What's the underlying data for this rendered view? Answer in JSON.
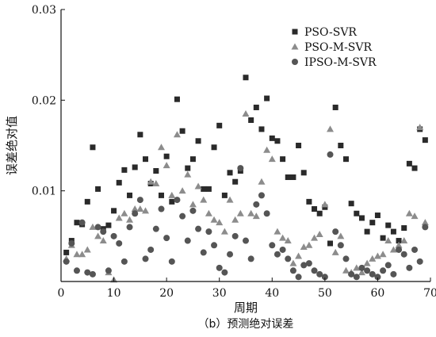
{
  "chart_data": {
    "type": "scatter",
    "title": "",
    "caption": "（b）预测绝对误差",
    "xlabel": "周期",
    "ylabel": "误差绝对值",
    "xlim": [
      0,
      70
    ],
    "ylim": [
      0,
      0.03
    ],
    "x_ticks": [
      "0",
      "10",
      "20",
      "30",
      "40",
      "50",
      "60",
      "70"
    ],
    "y_ticks": [
      "0.01",
      "0.02",
      "0.03"
    ],
    "x_tick_values": [
      0,
      10,
      20,
      30,
      40,
      50,
      60,
      70
    ],
    "y_tick_values": [
      0.01,
      0.02,
      0.03
    ],
    "legend_position": "top-right",
    "series": [
      {
        "name": "PSO-SVR",
        "marker": "square",
        "color": "#2a2a2a",
        "points": [
          [
            1,
            0.0032
          ],
          [
            2,
            0.0045
          ],
          [
            3,
            0.0065
          ],
          [
            4,
            0.0063
          ],
          [
            5,
            0.0088
          ],
          [
            6,
            0.0148
          ],
          [
            7,
            0.0102
          ],
          [
            8,
            0.0058
          ],
          [
            9,
            0.0062
          ],
          [
            10,
            0.0078
          ],
          [
            11,
            0.0109
          ],
          [
            12,
            0.0123
          ],
          [
            13,
            0.0095
          ],
          [
            14,
            0.0126
          ],
          [
            15,
            0.0162
          ],
          [
            16,
            0.0135
          ],
          [
            17,
            0.0108
          ],
          [
            18,
            0.0122
          ],
          [
            19,
            0.0095
          ],
          [
            20,
            0.0138
          ],
          [
            21,
            0.0088
          ],
          [
            22,
            0.0201
          ],
          [
            23,
            0.0166
          ],
          [
            24,
            0.0125
          ],
          [
            25,
            0.0135
          ],
          [
            26,
            0.0155
          ],
          [
            27,
            0.0102
          ],
          [
            28,
            0.0102
          ],
          [
            29,
            0.0148
          ],
          [
            30,
            0.0172
          ],
          [
            31,
            0.0095
          ],
          [
            32,
            0.012
          ],
          [
            33,
            0.011
          ],
          [
            34,
            0.0122
          ],
          [
            35,
            0.0225
          ],
          [
            36,
            0.0178
          ],
          [
            37,
            0.0192
          ],
          [
            38,
            0.0168
          ],
          [
            39,
            0.0202
          ],
          [
            40,
            0.0158
          ],
          [
            41,
            0.0155
          ],
          [
            42,
            0.0135
          ],
          [
            43,
            0.0115
          ],
          [
            44,
            0.0115
          ],
          [
            45,
            0.015
          ],
          [
            46,
            0.012
          ],
          [
            47,
            0.0088
          ],
          [
            48,
            0.008
          ],
          [
            49,
            0.0075
          ],
          [
            50,
            0.0082
          ],
          [
            51,
            0.0042
          ],
          [
            52,
            0.0192
          ],
          [
            53,
            0.015
          ],
          [
            54,
            0.0135
          ],
          [
            55,
            0.0086
          ],
          [
            56,
            0.0075
          ],
          [
            57,
            0.007
          ],
          [
            58,
            0.0055
          ],
          [
            59,
            0.0065
          ],
          [
            60,
            0.0073
          ],
          [
            61,
            0.0048
          ],
          [
            62,
            0.0062
          ],
          [
            63,
            0.0055
          ],
          [
            64,
            0.0045
          ],
          [
            65,
            0.0059
          ],
          [
            66,
            0.013
          ],
          [
            67,
            0.0125
          ],
          [
            68,
            0.0168
          ],
          [
            69,
            0.0156
          ]
        ]
      },
      {
        "name": "PSO-M-SVR",
        "marker": "triangle",
        "color": "#8c8c8c",
        "points": [
          [
            1,
            0.0025
          ],
          [
            2,
            0.004
          ],
          [
            3,
            0.003
          ],
          [
            4,
            0.003
          ],
          [
            5,
            0.0035
          ],
          [
            6,
            0.006
          ],
          [
            7,
            0.005
          ],
          [
            8,
            0.0045
          ],
          [
            9,
            0.001
          ],
          [
            10,
            0.0002
          ],
          [
            11,
            0.007
          ],
          [
            12,
            0.0075
          ],
          [
            13,
            0.0068
          ],
          [
            14,
            0.008
          ],
          [
            15,
            0.008
          ],
          [
            16,
            0.0078
          ],
          [
            17,
            0.011
          ],
          [
            18,
            0.0108
          ],
          [
            19,
            0.0148
          ],
          [
            20,
            0.0128
          ],
          [
            21,
            0.0095
          ],
          [
            22,
            0.0162
          ],
          [
            23,
            0.01
          ],
          [
            24,
            0.0118
          ],
          [
            25,
            0.0085
          ],
          [
            26,
            0.0105
          ],
          [
            27,
            0.009
          ],
          [
            28,
            0.0075
          ],
          [
            29,
            0.0068
          ],
          [
            30,
            0.0065
          ],
          [
            31,
            0.0055
          ],
          [
            32,
            0.009
          ],
          [
            33,
            0.0068
          ],
          [
            34,
            0.0075
          ],
          [
            35,
            0.0185
          ],
          [
            36,
            0.0075
          ],
          [
            37,
            0.0072
          ],
          [
            38,
            0.011
          ],
          [
            39,
            0.0145
          ],
          [
            40,
            0.0135
          ],
          [
            41,
            0.0055
          ],
          [
            42,
            0.0048
          ],
          [
            43,
            0.0045
          ],
          [
            44,
            0.002
          ],
          [
            45,
            0.0028
          ],
          [
            46,
            0.0038
          ],
          [
            47,
            0.004
          ],
          [
            48,
            0.0048
          ],
          [
            49,
            0.0052
          ],
          [
            50,
            0.0085
          ],
          [
            51,
            0.0168
          ],
          [
            52,
            0.0032
          ],
          [
            53,
            0.005
          ],
          [
            54,
            0.0012
          ],
          [
            55,
            0.001
          ],
          [
            56,
            0.0015
          ],
          [
            57,
            0.001
          ],
          [
            58,
            0.002
          ],
          [
            59,
            0.0025
          ],
          [
            60,
            0.0028
          ],
          [
            61,
            0.003
          ],
          [
            62,
            0.0045
          ],
          [
            63,
            0.0035
          ],
          [
            64,
            0.004
          ],
          [
            65,
            0.0045
          ],
          [
            66,
            0.0075
          ],
          [
            67,
            0.0072
          ],
          [
            68,
            0.017
          ],
          [
            69,
            0.0065
          ]
        ]
      },
      {
        "name": "IPSO-M-SVR",
        "marker": "circle",
        "color": "#555555",
        "points": [
          [
            1,
            0.0022
          ],
          [
            2,
            0.0042
          ],
          [
            3,
            0.0012
          ],
          [
            4,
            0.0065
          ],
          [
            5,
            0.001
          ],
          [
            6,
            0.0008
          ],
          [
            7,
            0.006
          ],
          [
            8,
            0.0055
          ],
          [
            9,
            0.0012
          ],
          [
            10,
            0.005
          ],
          [
            11,
            0.0042
          ],
          [
            12,
            0.0022
          ],
          [
            13,
            0.006
          ],
          [
            14,
            0.0075
          ],
          [
            15,
            0.009
          ],
          [
            16,
            0.0025
          ],
          [
            17,
            0.0035
          ],
          [
            18,
            0.0058
          ],
          [
            19,
            0.008
          ],
          [
            20,
            0.0048
          ],
          [
            21,
            0.0022
          ],
          [
            22,
            0.009
          ],
          [
            23,
            0.0072
          ],
          [
            24,
            0.0045
          ],
          [
            25,
            0.0078
          ],
          [
            26,
            0.0058
          ],
          [
            27,
            0.0032
          ],
          [
            28,
            0.0055
          ],
          [
            29,
            0.004
          ],
          [
            30,
            0.0015
          ],
          [
            31,
            0.001
          ],
          [
            32,
            0.003
          ],
          [
            33,
            0.005
          ],
          [
            34,
            0.0125
          ],
          [
            35,
            0.0045
          ],
          [
            36,
            0.0025
          ],
          [
            37,
            0.0085
          ],
          [
            38,
            0.0095
          ],
          [
            39,
            0.0075
          ],
          [
            40,
            0.004
          ],
          [
            41,
            0.003
          ],
          [
            42,
            0.0035
          ],
          [
            43,
            0.0025
          ],
          [
            44,
            0.0012
          ],
          [
            45,
            0.0005
          ],
          [
            46,
            0.0018
          ],
          [
            47,
            0.002
          ],
          [
            48,
            0.0012
          ],
          [
            49,
            0.0008
          ],
          [
            50,
            0.0005
          ],
          [
            51,
            0.014
          ],
          [
            52,
            0.0055
          ],
          [
            53,
            0.004
          ],
          [
            54,
            0.0025
          ],
          [
            55,
            0.0008
          ],
          [
            56,
            0.0005
          ],
          [
            57,
            0.0015
          ],
          [
            58,
            0.0012
          ],
          [
            59,
            0.0008
          ],
          [
            60,
            0.0005
          ],
          [
            61,
            0.0012
          ],
          [
            62,
            0.0018
          ],
          [
            63,
            0.0008
          ],
          [
            64,
            0.0035
          ],
          [
            65,
            0.003
          ],
          [
            66,
            0.0015
          ],
          [
            67,
            0.0035
          ],
          [
            68,
            0.0022
          ],
          [
            69,
            0.006
          ]
        ]
      }
    ]
  }
}
